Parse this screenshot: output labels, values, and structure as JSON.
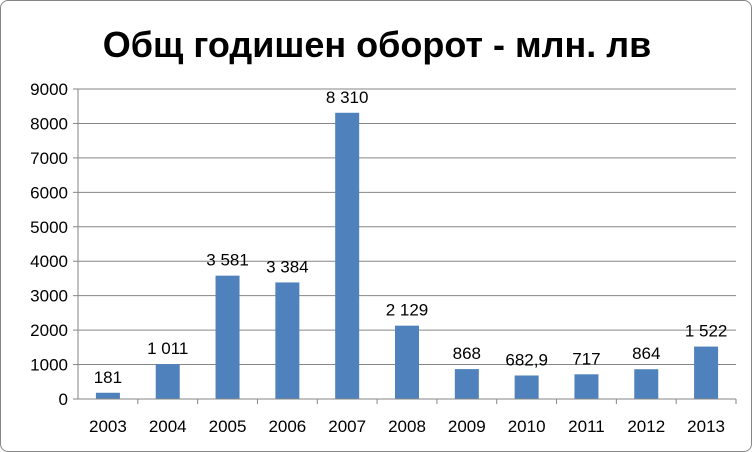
{
  "chart_data": {
    "type": "bar",
    "title": "Общ годишен оборот - млн. лв",
    "xlabel": "",
    "ylabel": "",
    "categories": [
      "2003",
      "2004",
      "2005",
      "2006",
      "2007",
      "2008",
      "2009",
      "2010",
      "2011",
      "2012",
      "2013"
    ],
    "values": [
      181,
      1011,
      3581,
      3384,
      8310,
      2129,
      868,
      682.9,
      717,
      864,
      1522
    ],
    "data_labels": [
      "181",
      "1 011",
      "3 581",
      "3 384",
      "8 310",
      "2 129",
      "868",
      "682,9",
      "717",
      "864",
      "1 522"
    ],
    "ylim": [
      0,
      9000
    ],
    "yticks": [
      0,
      1000,
      2000,
      3000,
      4000,
      5000,
      6000,
      7000,
      8000,
      9000
    ],
    "grid": true,
    "legend": "none",
    "bar_color": "#4f81bd",
    "grid_color": "#868686"
  }
}
